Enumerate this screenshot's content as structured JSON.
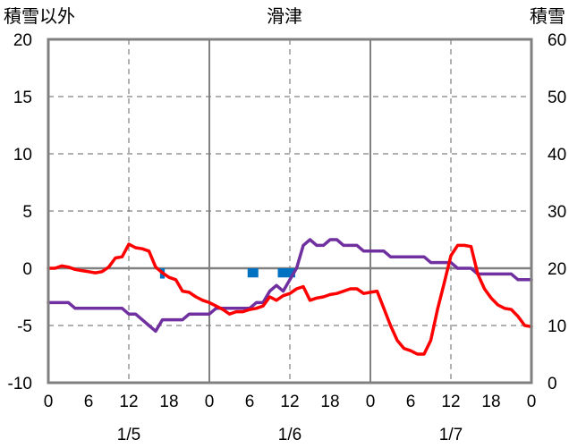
{
  "chart_data": {
    "type": "line",
    "title": "滑津",
    "left_axis_label": "積雪以外",
    "right_axis_label": "積雪",
    "left_ylim": [
      -10,
      20
    ],
    "left_ticks": [
      "20",
      "15",
      "10",
      "5",
      "0",
      "-5",
      "-10"
    ],
    "right_ylim": [
      0,
      60
    ],
    "right_ticks": [
      "60",
      "50",
      "40",
      "30",
      "20",
      "10",
      "0"
    ],
    "xlim": [
      0,
      72
    ],
    "x_tick_hours": [
      0,
      6,
      12,
      18,
      24,
      30,
      36,
      42,
      48,
      54,
      60,
      66,
      72
    ],
    "x_tick_labels": [
      "0",
      "6",
      "12",
      "18",
      "0",
      "6",
      "12",
      "18",
      "0",
      "6",
      "12",
      "18",
      "0"
    ],
    "date_labels": [
      {
        "hour": 12,
        "text": "1/5"
      },
      {
        "hour": 36,
        "text": "1/6"
      },
      {
        "hour": 60,
        "text": "1/7"
      }
    ],
    "grid": {
      "vertical_dashed_hours": [
        12,
        36,
        60
      ],
      "vertical_solid_hours": [
        24,
        48
      ],
      "horizontal_lines": [
        15,
        10,
        5,
        -5
      ],
      "zero_line": true
    },
    "colors": {
      "temperature": "#ff0000",
      "snow_depth": "#7030a0",
      "precipitation": "#0070c0",
      "zero_line": "#808080",
      "grid": "#808080"
    },
    "series": [
      {
        "axis": "left",
        "color": "#ff0000",
        "x": [
          0,
          1,
          2,
          3,
          4,
          5,
          6,
          7,
          8,
          9,
          10,
          11,
          12,
          13,
          14,
          15,
          16,
          17,
          18,
          19,
          20,
          21,
          22,
          23,
          24,
          25,
          26,
          27,
          28,
          29,
          30,
          31,
          32,
          33,
          34,
          35,
          36,
          37,
          38,
          39,
          40,
          41,
          42,
          43,
          44,
          45,
          46,
          47,
          48,
          49,
          50,
          51,
          52,
          53,
          54,
          55,
          56,
          57,
          58,
          59,
          60,
          61,
          62,
          63,
          64,
          65,
          66,
          67,
          68,
          69,
          70,
          71,
          72
        ],
        "values": [
          0,
          0,
          0.2,
          0.1,
          -0.1,
          -0.2,
          -0.3,
          -0.4,
          -0.3,
          0.1,
          0.9,
          1.0,
          2.1,
          1.8,
          1.7,
          1.5,
          0.1,
          -0.4,
          -0.8,
          -1.0,
          -2.0,
          -2.1,
          -2.5,
          -2.8,
          -3.0,
          -3.3,
          -3.6,
          -4.0,
          -3.8,
          -3.8,
          -3.6,
          -3.5,
          -3.3,
          -2.5,
          -2.8,
          -2.4,
          -2.2,
          -1.8,
          -1.6,
          -2.8,
          -2.6,
          -2.5,
          -2.3,
          -2.2,
          -2.0,
          -1.8,
          -1.8,
          -2.2,
          -2.1,
          -2.0,
          -3.5,
          -5.0,
          -6.3,
          -7.0,
          -7.2,
          -7.5,
          -7.5,
          -6.3,
          -3.6,
          -1.3,
          1.1,
          2.0,
          2.0,
          1.9,
          -0.5,
          -1.8,
          -2.6,
          -3.2,
          -3.5,
          -3.6,
          -4.2,
          -5.0,
          -5.1
        ]
      },
      {
        "axis": "right",
        "color": "#7030a0",
        "x": [
          0,
          1,
          2,
          3,
          4,
          5,
          6,
          7,
          8,
          9,
          10,
          11,
          12,
          13,
          14,
          15,
          16,
          17,
          18,
          19,
          20,
          21,
          22,
          23,
          24,
          25,
          26,
          27,
          28,
          29,
          30,
          31,
          32,
          33,
          34,
          35,
          36,
          37,
          38,
          39,
          40,
          41,
          42,
          43,
          44,
          45,
          46,
          47,
          48,
          49,
          50,
          51,
          52,
          53,
          54,
          55,
          56,
          57,
          58,
          59,
          60,
          61,
          62,
          63,
          64,
          65,
          66,
          67,
          68,
          69,
          70,
          71,
          72
        ],
        "values": [
          14,
          14,
          14,
          14,
          13,
          13,
          13,
          13,
          13,
          13,
          13,
          13,
          12,
          12,
          11,
          10,
          9,
          11,
          11,
          11,
          11,
          12,
          12,
          12,
          12,
          13,
          13,
          13,
          13,
          13,
          13,
          14,
          14,
          16,
          17,
          16,
          18,
          20,
          24,
          25,
          24,
          24,
          25,
          25,
          24,
          24,
          24,
          23,
          23,
          23,
          23,
          22,
          22,
          22,
          22,
          22,
          22,
          21,
          21,
          21,
          21,
          20,
          20,
          20,
          19,
          19,
          19,
          19,
          19,
          19,
          18,
          18,
          18
        ]
      },
      {
        "axis": "left",
        "type": "bar",
        "color": "#0070c0",
        "x": [
          17,
          30.5,
          35.5
        ],
        "widths": [
          0.7,
          1.6,
          2.6
        ],
        "values": [
          -0.9,
          -0.8,
          -0.8
        ]
      }
    ]
  }
}
